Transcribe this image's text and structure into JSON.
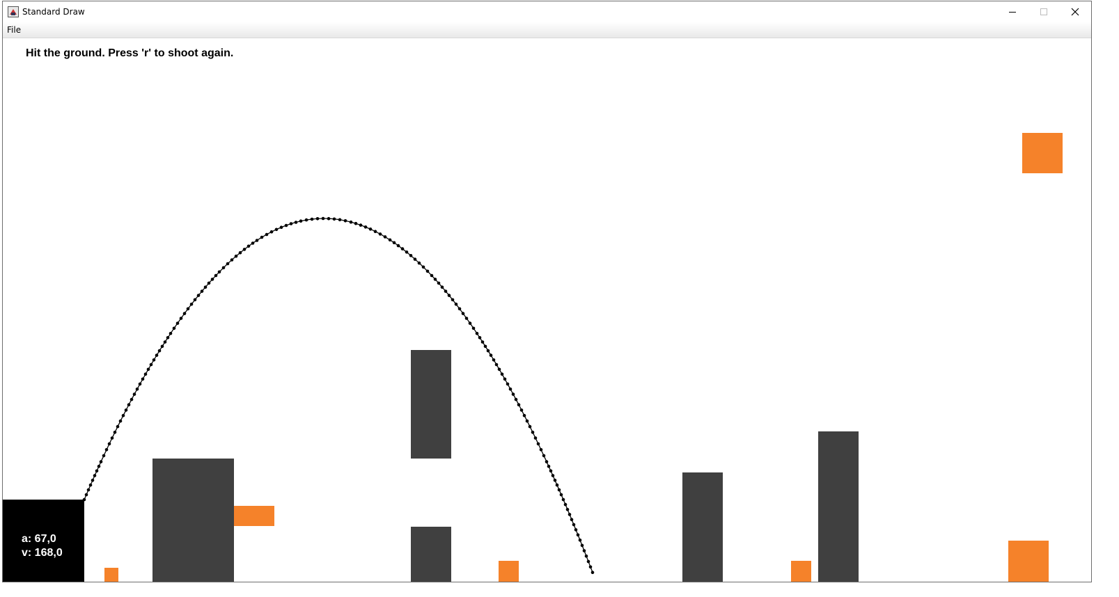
{
  "window": {
    "title": "Standard Draw",
    "controls": {
      "minimize": "—",
      "maximize": "☐",
      "close": "✕"
    }
  },
  "menu": {
    "file_label": "File"
  },
  "game": {
    "status_message": "Hit the ground. Press 'r' to shoot again.",
    "angle_label": "a: 67,0",
    "velocity_label": "v: 168,0",
    "colors": {
      "obstacle": "#404040",
      "target": "#f5822a",
      "launcher": "#000000",
      "trajectory": "#000000"
    }
  }
}
